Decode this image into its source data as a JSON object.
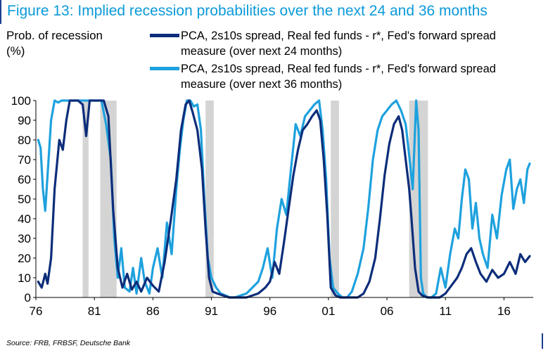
{
  "header": {
    "title": "Figure 13: Implied recession probabilities over the next 24 and 36 months"
  },
  "footer": {
    "source": "Source: FRB, FRBSF, Deutsche Bank"
  },
  "colors": {
    "series24": "#0d2d7a",
    "series36": "#1ea1de",
    "recession": "#d4d4d4",
    "title": "#0a9ad9"
  },
  "chart_data": {
    "type": "line",
    "title": "Implied recession probabilities over the next 24 and 36 months",
    "ylabel": "Prob. of recession (%)",
    "ylabel_lines": [
      "Prob. of recession",
      "(%)"
    ],
    "xlabel": "",
    "xlim": [
      1976,
      2018.5
    ],
    "ylim": [
      0,
      100
    ],
    "xticks": [
      1976,
      1981,
      1986,
      1991,
      1996,
      2001,
      2006,
      2011,
      2016
    ],
    "xtick_labels": [
      "76",
      "81",
      "86",
      "91",
      "96",
      "01",
      "06",
      "11",
      "16"
    ],
    "yticks": [
      0,
      10,
      20,
      30,
      40,
      50,
      60,
      70,
      80,
      90,
      100
    ],
    "ytick_labels": [
      "0",
      "10",
      "20",
      "30",
      "40",
      "50",
      "60",
      "70",
      "80",
      "90",
      "100"
    ],
    "recessions": [
      [
        1980.0,
        1980.5
      ],
      [
        1981.5,
        1982.9
      ],
      [
        1990.5,
        1991.2
      ],
      [
        2001.2,
        2001.9
      ],
      [
        2007.9,
        2009.5
      ]
    ],
    "series": [
      {
        "name": "PCA, 2s10s spread, Real fed funds - r*, Fed's forward spread measure (over next 24 months)",
        "legend_lines": [
          "PCA, 2s10s spread, Real fed funds - r*, Fed's forward spread",
          "measure (over next 24 months)"
        ],
        "color": "#0d2d7a",
        "x": [
          1976.2,
          1976.5,
          1976.8,
          1977.0,
          1977.3,
          1977.6,
          1978.0,
          1978.3,
          1978.6,
          1978.9,
          1979.2,
          1979.6,
          1980.0,
          1980.3,
          1980.6,
          1981.0,
          1981.4,
          1981.8,
          1982.2,
          1982.6,
          1983.0,
          1983.4,
          1983.8,
          1984.2,
          1984.6,
          1985.0,
          1985.5,
          1986.0,
          1986.5,
          1987.0,
          1987.5,
          1988.0,
          1988.4,
          1988.8,
          1989.1,
          1989.4,
          1989.8,
          1990.2,
          1990.5,
          1990.8,
          1991.1,
          1991.5,
          1992.0,
          1992.5,
          1993.0,
          1994.0,
          1995.0,
          1995.6,
          1996.0,
          1996.4,
          1996.8,
          1997.2,
          1997.6,
          1998.0,
          1998.4,
          1998.8,
          1999.2,
          1999.6,
          2000.0,
          2000.3,
          2000.6,
          2000.9,
          2001.2,
          2001.6,
          2002.0,
          2002.5,
          2003.0,
          2003.5,
          2004.0,
          2004.5,
          2005.0,
          2005.4,
          2005.8,
          2006.2,
          2006.6,
          2007.0,
          2007.3,
          2007.6,
          2007.9,
          2008.1,
          2008.4,
          2008.7,
          2009.0,
          2009.5,
          2010.0,
          2010.5,
          2011.0,
          2011.5,
          2012.0,
          2012.4,
          2012.8,
          2013.2,
          2013.6,
          2014.0,
          2014.5,
          2015.0,
          2015.5,
          2016.0,
          2016.5,
          2017.0,
          2017.4,
          2017.8,
          2018.2
        ],
        "values": [
          8,
          5,
          12,
          7,
          20,
          55,
          80,
          75,
          90,
          100,
          100,
          100,
          98,
          82,
          100,
          100,
          100,
          100,
          92,
          45,
          15,
          5,
          12,
          4,
          8,
          3,
          10,
          6,
          3,
          18,
          38,
          60,
          85,
          98,
          100,
          94,
          85,
          65,
          35,
          10,
          3,
          2,
          1,
          0,
          0,
          0,
          2,
          5,
          8,
          18,
          12,
          28,
          45,
          62,
          75,
          85,
          88,
          92,
          95,
          90,
          70,
          42,
          5,
          1,
          0,
          0,
          0,
          0,
          2,
          8,
          20,
          40,
          62,
          78,
          88,
          92,
          85,
          70,
          55,
          40,
          15,
          3,
          1,
          0,
          0,
          0,
          2,
          6,
          10,
          15,
          22,
          25,
          18,
          12,
          8,
          14,
          10,
          12,
          18,
          12,
          22,
          18,
          21
        ]
      },
      {
        "name": "PCA, 2s10s spread, Real fed funds - r*, Fed's forward spread measure (over next 36 months)",
        "legend_lines": [
          "PCA, 2s10s spread, Real fed funds - r*, Fed's forward spread",
          "measure (over next 36 months)"
        ],
        "color": "#1ea1de",
        "x": [
          1976.2,
          1976.4,
          1976.6,
          1976.8,
          1977.0,
          1977.3,
          1977.6,
          1977.9,
          1978.2,
          1978.5,
          1978.8,
          1979.2,
          1979.6,
          1980.0,
          1980.4,
          1980.8,
          1981.2,
          1981.6,
          1982.0,
          1982.4,
          1982.7,
          1983.0,
          1983.3,
          1983.6,
          1984.0,
          1984.3,
          1984.6,
          1985.0,
          1985.3,
          1985.7,
          1986.0,
          1986.4,
          1986.8,
          1987.2,
          1987.6,
          1988.0,
          1988.3,
          1988.6,
          1988.9,
          1989.2,
          1989.5,
          1989.8,
          1990.1,
          1990.4,
          1990.7,
          1991.0,
          1991.4,
          1991.8,
          1992.2,
          1992.6,
          1993.0,
          1994.0,
          1995.0,
          1995.4,
          1995.8,
          1996.2,
          1996.6,
          1997.0,
          1997.4,
          1997.8,
          1998.2,
          1998.6,
          1999.0,
          1999.4,
          1999.8,
          2000.2,
          2000.5,
          2000.8,
          2001.1,
          2001.4,
          2001.8,
          2002.2,
          2002.6,
          2003.0,
          2003.5,
          2004.0,
          2004.4,
          2004.8,
          2005.2,
          2005.6,
          2006.0,
          2006.4,
          2006.8,
          2007.2,
          2007.6,
          2007.9,
          2008.2,
          2008.5,
          2008.7,
          2008.9,
          2009.1,
          2009.4,
          2009.8,
          2010.2,
          2010.6,
          2011.0,
          2011.4,
          2011.8,
          2012.1,
          2012.4,
          2012.7,
          2013.0,
          2013.3,
          2013.6,
          2013.9,
          2014.2,
          2014.6,
          2015.0,
          2015.4,
          2015.8,
          2016.2,
          2016.5,
          2016.8,
          2017.1,
          2017.4,
          2017.7,
          2018.0,
          2018.2
        ],
        "values": [
          80,
          76,
          55,
          44,
          62,
          90,
          100,
          99,
          100,
          100,
          100,
          100,
          100,
          100,
          100,
          100,
          100,
          100,
          88,
          70,
          30,
          10,
          25,
          5,
          3,
          15,
          2,
          20,
          8,
          2,
          15,
          25,
          10,
          38,
          22,
          55,
          75,
          90,
          100,
          100,
          97,
          98,
          85,
          50,
          20,
          10,
          5,
          2,
          1,
          0,
          0,
          2,
          8,
          15,
          25,
          10,
          35,
          50,
          42,
          65,
          88,
          82,
          92,
          95,
          98,
          100,
          85,
          60,
          20,
          5,
          2,
          0,
          0,
          3,
          12,
          25,
          45,
          70,
          85,
          92,
          95,
          98,
          100,
          95,
          88,
          72,
          55,
          100,
          85,
          10,
          2,
          0,
          0,
          2,
          15,
          5,
          22,
          35,
          30,
          50,
          65,
          60,
          35,
          48,
          30,
          22,
          15,
          42,
          30,
          52,
          65,
          70,
          45,
          55,
          60,
          48,
          65,
          68
        ]
      }
    ]
  }
}
